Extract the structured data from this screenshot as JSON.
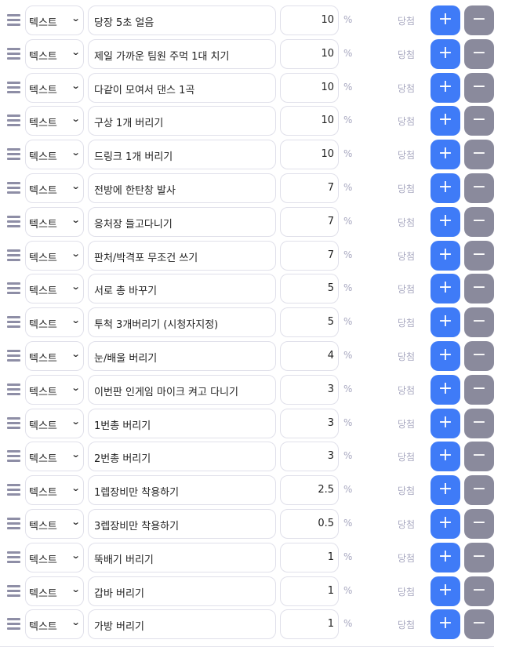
{
  "type_label": "텍스트",
  "percent_label": "%",
  "win_label": "당첨",
  "plus_label": "+",
  "minus_label": "−",
  "colors": {
    "plus": "#3f7bf7",
    "minus": "#8a8a9c"
  },
  "items": [
    {
      "text": "당장 5초 얼음",
      "percent": "10"
    },
    {
      "text": "제일 가까운 팀원 주먹 1대 치기",
      "percent": "10"
    },
    {
      "text": "다같이 모여서 댄스 1곡",
      "percent": "10"
    },
    {
      "text": "구상 1개 버리기",
      "percent": "10"
    },
    {
      "text": "드링크 1개 버리기",
      "percent": "10"
    },
    {
      "text": "전방에 한탄창 발사",
      "percent": "7"
    },
    {
      "text": "응처장 들고다니기",
      "percent": "7"
    },
    {
      "text": "판처/박격포 무조건 쓰기",
      "percent": "7"
    },
    {
      "text": "서로 총 바꾸기",
      "percent": "5"
    },
    {
      "text": "투척 3개버리기 (시청자지정)",
      "percent": "5"
    },
    {
      "text": "눈/배울 버리기",
      "percent": "4"
    },
    {
      "text": "이번판 인게임 마이크 켜고 다니기",
      "percent": "3"
    },
    {
      "text": "1번총 버리기",
      "percent": "3"
    },
    {
      "text": "2번총 버리기",
      "percent": "3"
    },
    {
      "text": "1렙장비만 착용하기",
      "percent": "2.5"
    },
    {
      "text": "3렙장비만 착용하기",
      "percent": "0.5"
    },
    {
      "text": "뚝배기 버리기",
      "percent": "1"
    },
    {
      "text": "갑바 버리기",
      "percent": "1"
    },
    {
      "text": "가방 버리기",
      "percent": "1"
    }
  ]
}
